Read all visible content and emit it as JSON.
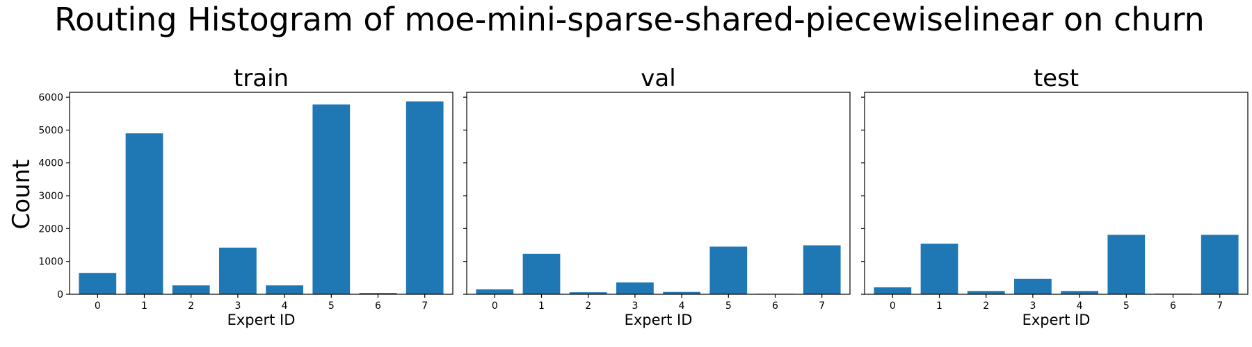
{
  "chart_data": {
    "type": "bar",
    "title": "Routing Histogram of moe-mini-sparse-shared-piecewiselinear on churn",
    "ylabel": "Count",
    "xlabel": "Expert ID",
    "bar_color": "#1f77b4",
    "ylim": [
      0,
      6150
    ],
    "yticks": [
      0,
      1000,
      2000,
      3000,
      4000,
      5000,
      6000
    ],
    "sharey": true,
    "grid": false,
    "categories": [
      "0",
      "1",
      "2",
      "3",
      "4",
      "5",
      "6",
      "7"
    ],
    "panels": [
      {
        "name": "train",
        "values": [
          650,
          4900,
          270,
          1420,
          270,
          5780,
          40,
          5870
        ]
      },
      {
        "name": "val",
        "values": [
          150,
          1230,
          60,
          360,
          70,
          1450,
          15,
          1490
        ]
      },
      {
        "name": "test",
        "values": [
          210,
          1540,
          100,
          470,
          100,
          1810,
          20,
          1810
        ]
      }
    ]
  }
}
